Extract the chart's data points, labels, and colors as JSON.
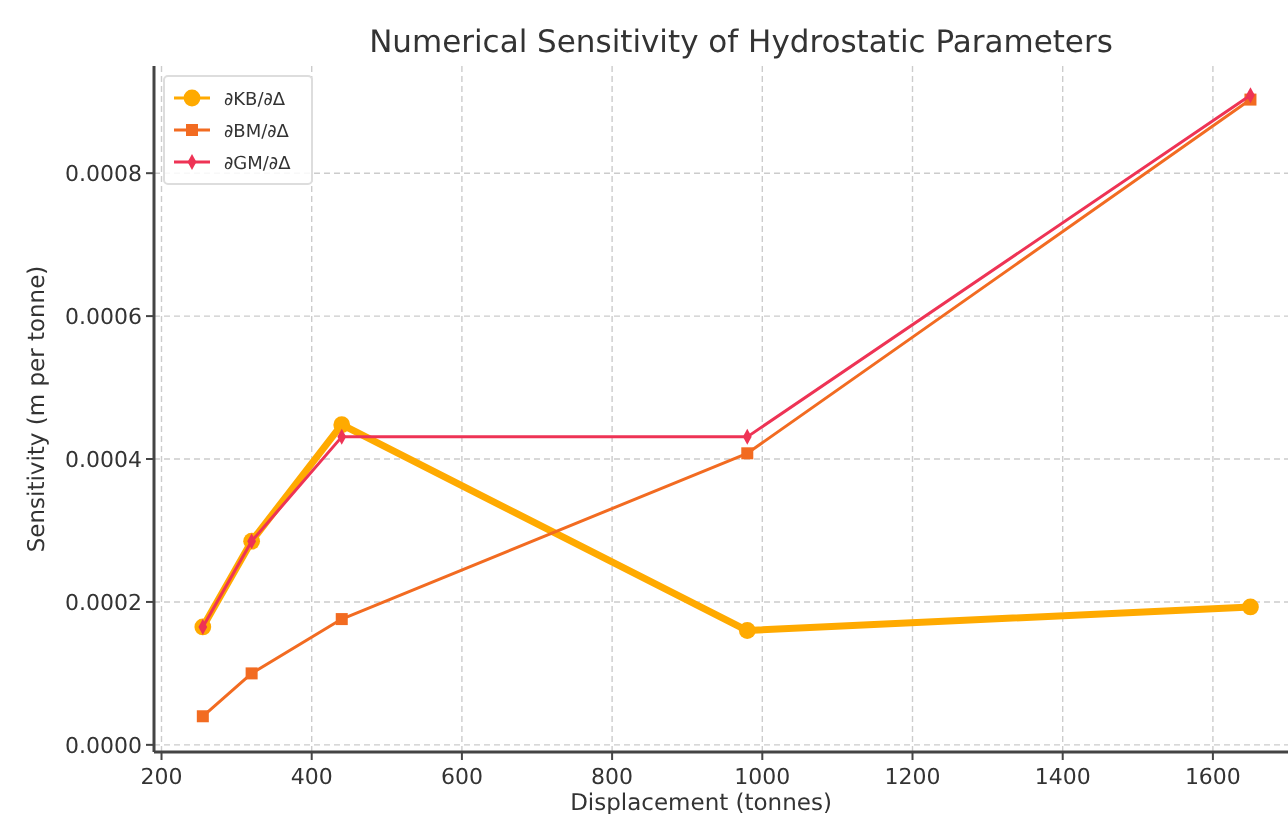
{
  "chart_data": {
    "type": "line",
    "title": "Numerical Sensitivity of Hydrostatic Parameters",
    "xlabel": "Displacement (tonnes)",
    "ylabel": "Sensitivity (m per tonne)",
    "x": [
      255,
      320,
      440,
      980,
      1650
    ],
    "series": [
      {
        "name": "∂KB/∂Δ",
        "color": "#ffaa00",
        "marker": "circle",
        "values": [
          0.000165,
          0.000285,
          0.000448,
          0.00016,
          0.000193
        ]
      },
      {
        "name": "∂BM/∂Δ",
        "color": "#f26b21",
        "marker": "square",
        "values": [
          4e-05,
          0.0001,
          0.000176,
          0.000408,
          0.000903
        ]
      },
      {
        "name": "∂GM/∂Δ",
        "color": "#ee3355",
        "marker": "diamond",
        "values": [
          0.000165,
          0.000285,
          0.000431,
          0.000431,
          0.000909
        ]
      }
    ],
    "xlim": [
      190,
      1700
    ],
    "xticks": [
      200,
      400,
      600,
      800,
      1000,
      1200,
      1400,
      1600
    ],
    "ylim": [
      -1e-05,
      0.00095
    ],
    "yticks": [
      {
        "value": 0,
        "label": "0.0000"
      },
      {
        "value": 0.0002,
        "label": "0.0002"
      },
      {
        "value": 0.0004,
        "label": "0.0004"
      },
      {
        "value": 0.0006,
        "label": "0.0006"
      },
      {
        "value": 0.0008,
        "label": "0.0008"
      }
    ],
    "grid": true,
    "legend": "top left"
  }
}
